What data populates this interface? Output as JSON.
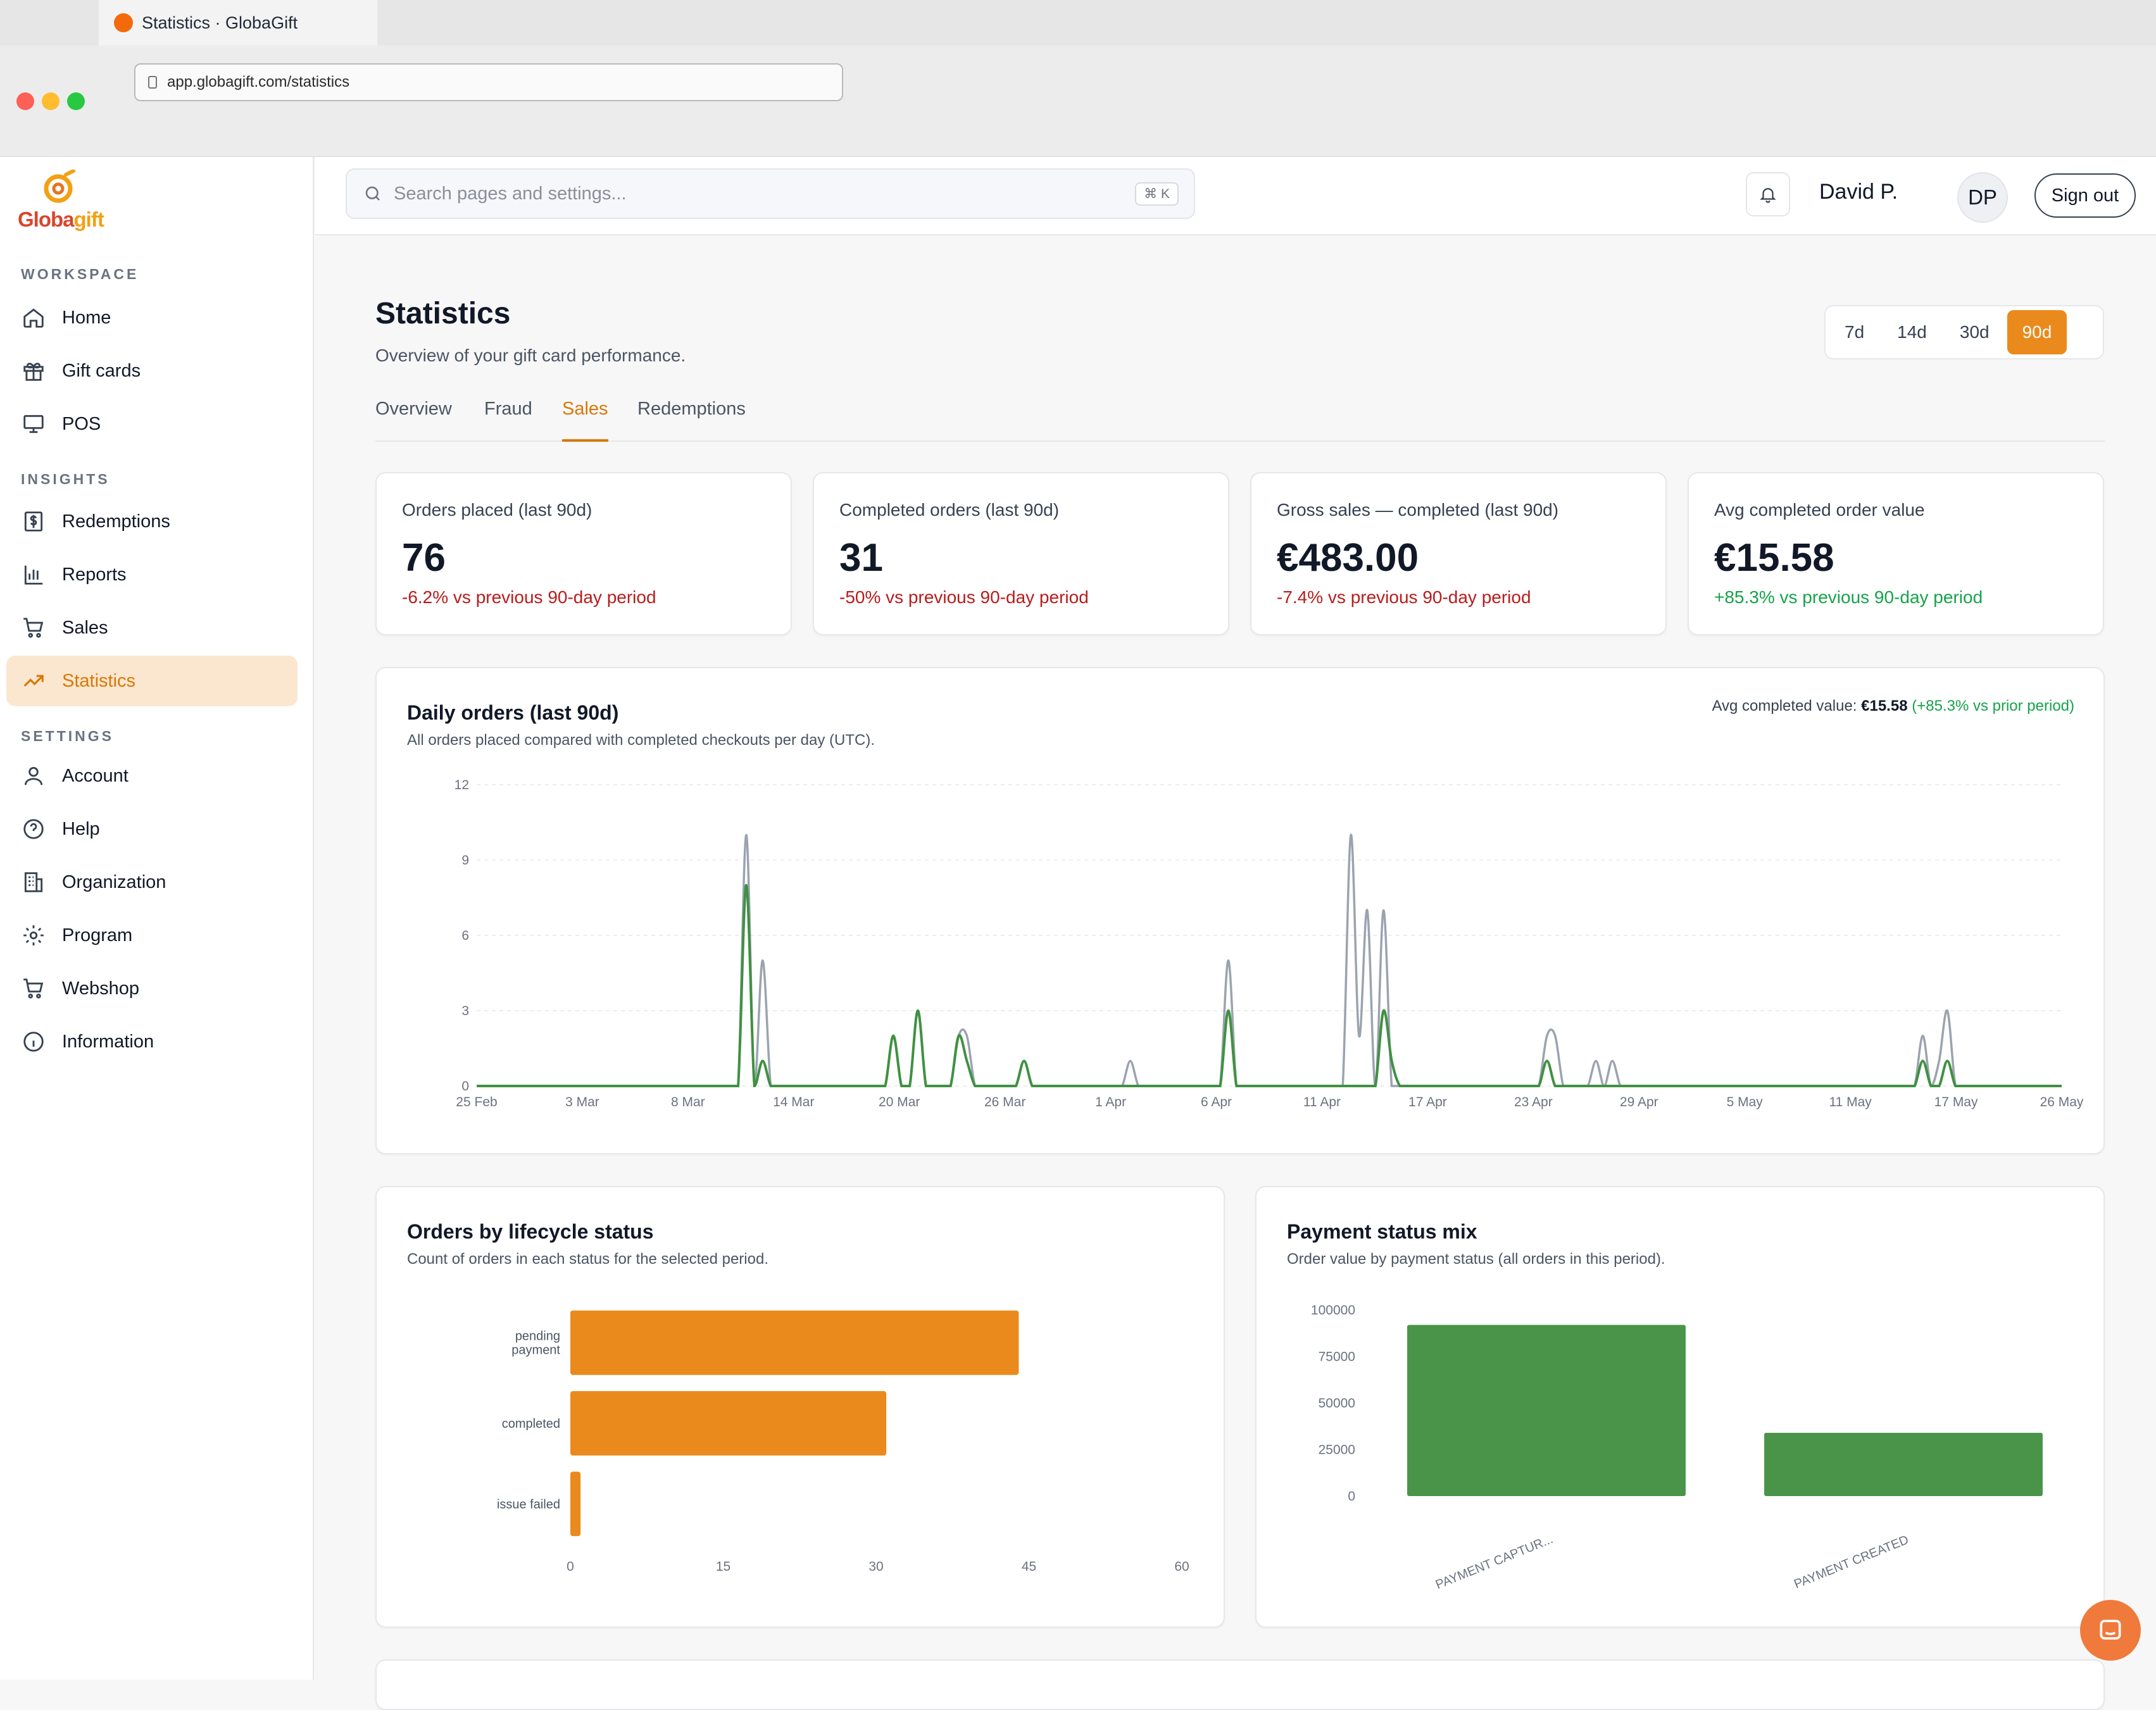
{
  "browser": {
    "tab_title": "Statistics · GlobaGift",
    "url": "app.globagift.com/statistics"
  },
  "sidebar": {
    "logo_text_1": "Globa",
    "logo_text_2": "gift",
    "sections": [
      {
        "label": "WORKSPACE",
        "items": [
          {
            "label": "Home",
            "icon": "home-icon"
          },
          {
            "label": "Gift cards",
            "icon": "gift-icon"
          },
          {
            "label": "POS",
            "icon": "monitor-icon"
          }
        ]
      },
      {
        "label": "INSIGHTS",
        "items": [
          {
            "label": "Redemptions",
            "icon": "dollar-icon"
          },
          {
            "label": "Reports",
            "icon": "bar-chart-icon"
          },
          {
            "label": "Sales",
            "icon": "cart-icon"
          },
          {
            "label": "Statistics",
            "icon": "trending-icon",
            "active": true
          }
        ]
      },
      {
        "label": "SETTINGS",
        "items": [
          {
            "label": "Account",
            "icon": "user-icon"
          },
          {
            "label": "Help",
            "icon": "help-icon"
          },
          {
            "label": "Organization",
            "icon": "building-icon"
          },
          {
            "label": "Program",
            "icon": "gear-icon"
          },
          {
            "label": "Webshop",
            "icon": "cart-icon"
          },
          {
            "label": "Information",
            "icon": "info-icon"
          }
        ]
      }
    ]
  },
  "header": {
    "search_placeholder": "Search pages and settings...",
    "shortcut": "⌘ K",
    "user_name": "David P.",
    "avatar_initials": "DP",
    "signout_label": "Sign out"
  },
  "page": {
    "title": "Statistics",
    "subtitle": "Overview of your gift card performance.",
    "ranges": [
      "7d",
      "14d",
      "30d",
      "90d"
    ],
    "active_range": "90d",
    "tabs": [
      "Overview",
      "Fraud",
      "Sales",
      "Redemptions"
    ],
    "active_tab": "Sales"
  },
  "kpis": [
    {
      "label": "Orders placed (last 90d)",
      "value": "76",
      "delta": "-6.2% vs previous 90-day period",
      "trend": "down"
    },
    {
      "label": "Completed orders (last 90d)",
      "value": "31",
      "delta": "-50% vs previous 90-day period",
      "trend": "down"
    },
    {
      "label": "Gross sales — completed (last 90d)",
      "value": "€483.00",
      "delta": "-7.4% vs previous 90-day period",
      "trend": "down"
    },
    {
      "label": "Avg completed order value",
      "value": "€15.58",
      "delta": "+85.3% vs previous 90-day period",
      "trend": "up"
    }
  ],
  "daily_chart": {
    "title": "Daily orders (last 90d)",
    "subtitle": "All orders placed compared with completed checkouts per day (UTC).",
    "avg_label": "Avg completed value:",
    "avg_value": "€15.58",
    "avg_delta": "(+85.3% vs prior period)",
    "colors": {
      "placed": "#9ca3af",
      "completed": "#3f9142"
    }
  },
  "lifecycle_chart": {
    "title": "Orders by lifecycle status",
    "subtitle": "Count of orders in each status for the selected period.",
    "bar_color": "#ea8a1c"
  },
  "payment_chart": {
    "title": "Payment status mix",
    "subtitle": "Order value by payment status (all orders in this period).",
    "bar_color": "#4a944a"
  },
  "chart_data": [
    {
      "type": "line",
      "x_ticks": [
        "25 Feb",
        "3 Mar",
        "8 Mar",
        "14 Mar",
        "20 Mar",
        "26 Mar",
        "1 Apr",
        "6 Apr",
        "11 Apr",
        "17 Apr",
        "23 Apr",
        "29 Apr",
        "5 May",
        "11 May",
        "17 May",
        "26 May"
      ],
      "ylim": [
        0,
        12
      ],
      "y_ticks": [
        0,
        3,
        6,
        9,
        12
      ],
      "grid": true,
      "series": [
        {
          "values": [
            0,
            0,
            0,
            0,
            0,
            0,
            0,
            0,
            0,
            0,
            0,
            0,
            0,
            0,
            0,
            0,
            0,
            0,
            0,
            0,
            0,
            0,
            0,
            0,
            0,
            0,
            0,
            0,
            0,
            0,
            0,
            0,
            0,
            10,
            0,
            5,
            0,
            0,
            0,
            0,
            0,
            0,
            0,
            0,
            0,
            0,
            0,
            0,
            0,
            0,
            0,
            2,
            0,
            0,
            3,
            0,
            0,
            0,
            0,
            2,
            2,
            0,
            0,
            0,
            0,
            0,
            0,
            1,
            0,
            0,
            0,
            0,
            0,
            0,
            0,
            0,
            0,
            0,
            0,
            0,
            1,
            0,
            0,
            0,
            0,
            0,
            0,
            0,
            0,
            0,
            0,
            0,
            5,
            0,
            0,
            0,
            0,
            0,
            0,
            0,
            0,
            0,
            0,
            0,
            0,
            0,
            0,
            10,
            2,
            7,
            0,
            7,
            0,
            0,
            0,
            0,
            0,
            0,
            0,
            0,
            0,
            0,
            0,
            0,
            0,
            0,
            0,
            0,
            0,
            0,
            0,
            2,
            2,
            0,
            0,
            0,
            0,
            1,
            0,
            1,
            0,
            0,
            0,
            0,
            0,
            0,
            0,
            0,
            0,
            0,
            0,
            0,
            0,
            0,
            0,
            0,
            0,
            0,
            0,
            0,
            0,
            0,
            0,
            0,
            0,
            0,
            0,
            0,
            0,
            0,
            0,
            0,
            0,
            0,
            0,
            0,
            0,
            2,
            0,
            1,
            3,
            0,
            0,
            0,
            0,
            0,
            0,
            0,
            0,
            0,
            0,
            0,
            0,
            0,
            0
          ]
        },
        {
          "values": [
            0,
            0,
            0,
            0,
            0,
            0,
            0,
            0,
            0,
            0,
            0,
            0,
            0,
            0,
            0,
            0,
            0,
            0,
            0,
            0,
            0,
            0,
            0,
            0,
            0,
            0,
            0,
            0,
            0,
            0,
            0,
            0,
            0,
            8,
            0,
            1,
            0,
            0,
            0,
            0,
            0,
            0,
            0,
            0,
            0,
            0,
            0,
            0,
            0,
            0,
            0,
            2,
            0,
            0,
            3,
            0,
            0,
            0,
            0,
            2,
            1,
            0,
            0,
            0,
            0,
            0,
            0,
            1,
            0,
            0,
            0,
            0,
            0,
            0,
            0,
            0,
            0,
            0,
            0,
            0,
            0,
            0,
            0,
            0,
            0,
            0,
            0,
            0,
            0,
            0,
            0,
            0,
            3,
            0,
            0,
            0,
            0,
            0,
            0,
            0,
            0,
            0,
            0,
            0,
            0,
            0,
            0,
            0,
            0,
            0,
            0,
            3,
            1,
            0,
            0,
            0,
            0,
            0,
            0,
            0,
            0,
            0,
            0,
            0,
            0,
            0,
            0,
            0,
            0,
            0,
            0,
            1,
            0,
            0,
            0,
            0,
            0,
            0,
            0,
            0,
            0,
            0,
            0,
            0,
            0,
            0,
            0,
            0,
            0,
            0,
            0,
            0,
            0,
            0,
            0,
            0,
            0,
            0,
            0,
            0,
            0,
            0,
            0,
            0,
            0,
            0,
            0,
            0,
            0,
            0,
            0,
            0,
            0,
            0,
            0,
            0,
            0,
            1,
            0,
            0,
            1,
            0,
            0,
            0,
            0,
            0,
            0,
            0,
            0,
            0,
            0,
            0,
            0,
            0,
            0
          ]
        }
      ]
    },
    {
      "type": "bar",
      "orientation": "horizontal",
      "categories": [
        "pending payment",
        "completed",
        "issue failed"
      ],
      "values": [
        44,
        31,
        1
      ],
      "xlim": [
        0,
        60
      ],
      "x_ticks": [
        0,
        15,
        30,
        45,
        60
      ]
    },
    {
      "type": "bar",
      "categories": [
        "PAYMENT CAPTUR...",
        "PAYMENT CREATED"
      ],
      "values": [
        92000,
        34000
      ],
      "ylim": [
        0,
        100000
      ],
      "y_ticks": [
        0,
        25000,
        50000,
        75000,
        100000
      ]
    }
  ]
}
